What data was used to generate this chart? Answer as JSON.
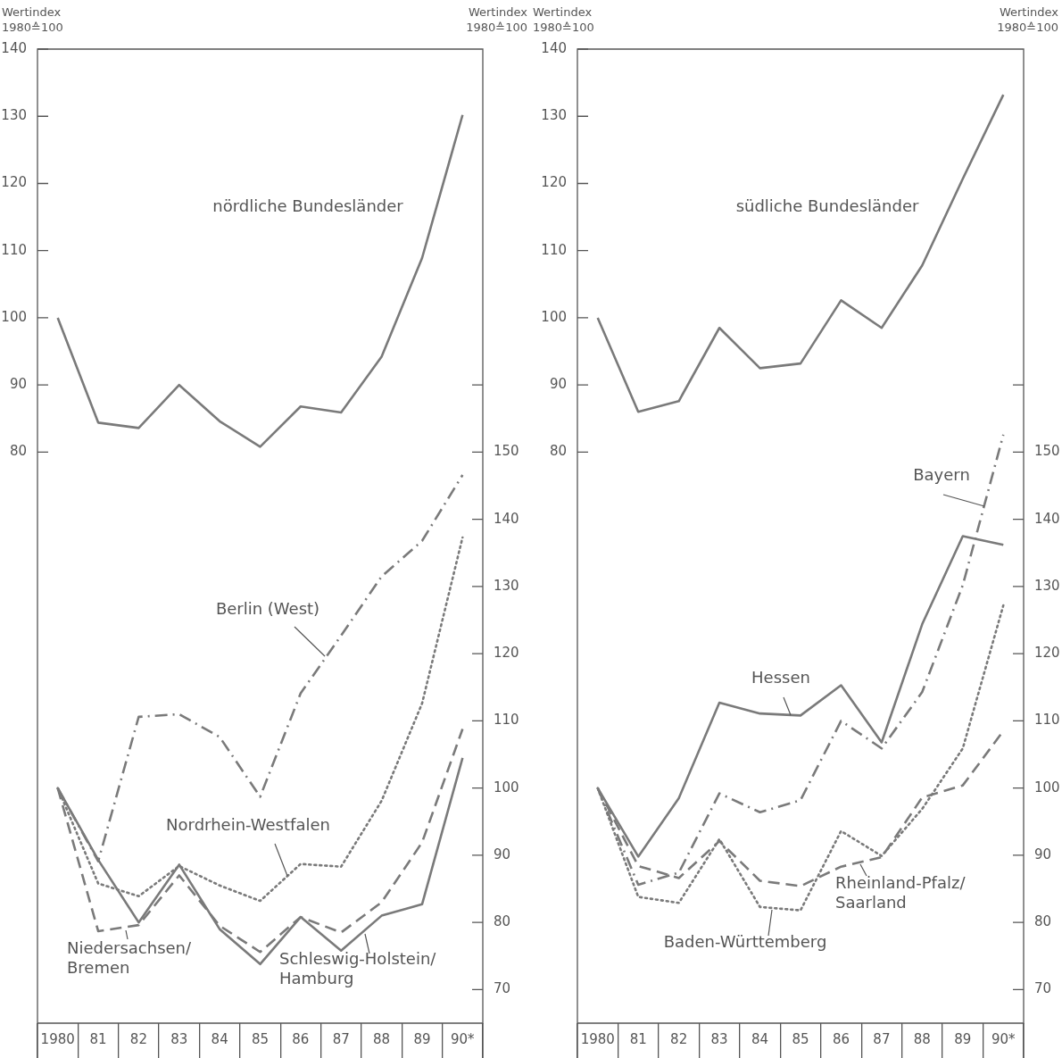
{
  "chart_data": [
    {
      "type": "line",
      "ylabel": "Wertindex\n1980≙100",
      "y2label": "Wertindex\n1980≙100",
      "categories": [
        "1980",
        "81",
        "82",
        "83",
        "84",
        "85",
        "86",
        "87",
        "88",
        "89",
        "90*"
      ],
      "ylim": [
        -5,
        140
      ],
      "yticks": [
        80,
        90,
        100,
        110,
        120,
        130,
        140
      ],
      "y2lim": [
        65,
        210
      ],
      "y2ticks": [
        70,
        80,
        90,
        100,
        110,
        120,
        130,
        140,
        150,
        {
          "value": 160,
          "label": null
        }
      ],
      "series": [
        {
          "name": "nördliche Bundesländer",
          "color": "#7a7a7a",
          "line_style": "solid",
          "values": [
            100,
            84.4,
            83.6,
            90,
            84.6,
            80.8,
            86.8,
            85.9,
            94.2,
            108.9,
            130.2
          ]
        },
        {
          "name": "Berlin (West)",
          "color": "#7a7a7a",
          "line_style": "dashdot",
          "axis": "y2",
          "values": [
            100,
            89.1,
            110.6,
            111,
            107.6,
            98.7,
            114.1,
            122.7,
            131.5,
            136.8,
            146.6
          ]
        },
        {
          "name": "Nordrhein-Westfalen",
          "color": "#7a7a7a",
          "line_style": "dotted",
          "axis": "y2",
          "values": [
            100,
            85.8,
            83.9,
            88.4,
            85.5,
            83.2,
            88.7,
            88.3,
            98.1,
            112.6,
            137.3
          ]
        },
        {
          "name": "Niedersachsen/Bremen",
          "color": "#7a7a7a",
          "line_style": "dashed",
          "axis": "y2",
          "values": [
            100,
            78.7,
            79.6,
            87,
            79.5,
            75.6,
            80.8,
            78.5,
            83,
            91.9,
            108.8
          ]
        },
        {
          "name": "Schleswig-Holstein/Hamburg",
          "color": "#7a7a7a",
          "line_style": "solid",
          "axis": "y2",
          "values": [
            100,
            89.3,
            80,
            88.6,
            79,
            73.8,
            80.8,
            75.8,
            81,
            82.7,
            104.5
          ]
        }
      ]
    },
    {
      "type": "line",
      "ylabel": "Wertindex\n1980≙100",
      "y2label": "Wertindex\n1980≙100",
      "categories": [
        "1980",
        "81",
        "82",
        "83",
        "84",
        "85",
        "86",
        "87",
        "88",
        "89",
        "90*"
      ],
      "ylim": [
        -5,
        140
      ],
      "yticks": [
        80,
        90,
        100,
        110,
        120,
        130,
        140
      ],
      "y2lim": [
        65,
        210
      ],
      "y2ticks": [
        70,
        80,
        90,
        100,
        110,
        120,
        130,
        140,
        150,
        {
          "value": 160,
          "label": null
        }
      ],
      "series": [
        {
          "name": "südliche Bundesländer",
          "color": "#7a7a7a",
          "line_style": "solid",
          "values": [
            100,
            86,
            87.6,
            98.5,
            92.5,
            93.2,
            102.6,
            98.5,
            107.8,
            120.7,
            133.2
          ]
        },
        {
          "name": "Bayern",
          "color": "#7a7a7a",
          "line_style": "dashdot",
          "axis": "y2",
          "values": [
            100,
            85.6,
            87.4,
            99.2,
            96.4,
            98.2,
            110,
            105.9,
            114.3,
            130.2,
            152.6
          ]
        },
        {
          "name": "Hessen",
          "color": "#7a7a7a",
          "line_style": "solid",
          "axis": "y2",
          "values": [
            100,
            89.8,
            98.5,
            112.7,
            111.1,
            110.8,
            115.3,
            106.8,
            124.4,
            137.5,
            136.2
          ]
        },
        {
          "name": "Rheinland-Pfalz/Saarland",
          "color": "#7a7a7a",
          "line_style": "dashed",
          "axis": "y2",
          "values": [
            100,
            88.4,
            86.6,
            92.1,
            86.2,
            85.4,
            88.3,
            89.7,
            98.6,
            100.4,
            108.5
          ]
        },
        {
          "name": "Baden-Württemberg",
          "color": "#7a7a7a",
          "line_style": "dotted",
          "axis": "y2",
          "values": [
            100,
            83.8,
            82.9,
            92.4,
            82.3,
            81.8,
            93.6,
            89.9,
            96.9,
            105.9,
            127.2
          ]
        }
      ]
    }
  ]
}
